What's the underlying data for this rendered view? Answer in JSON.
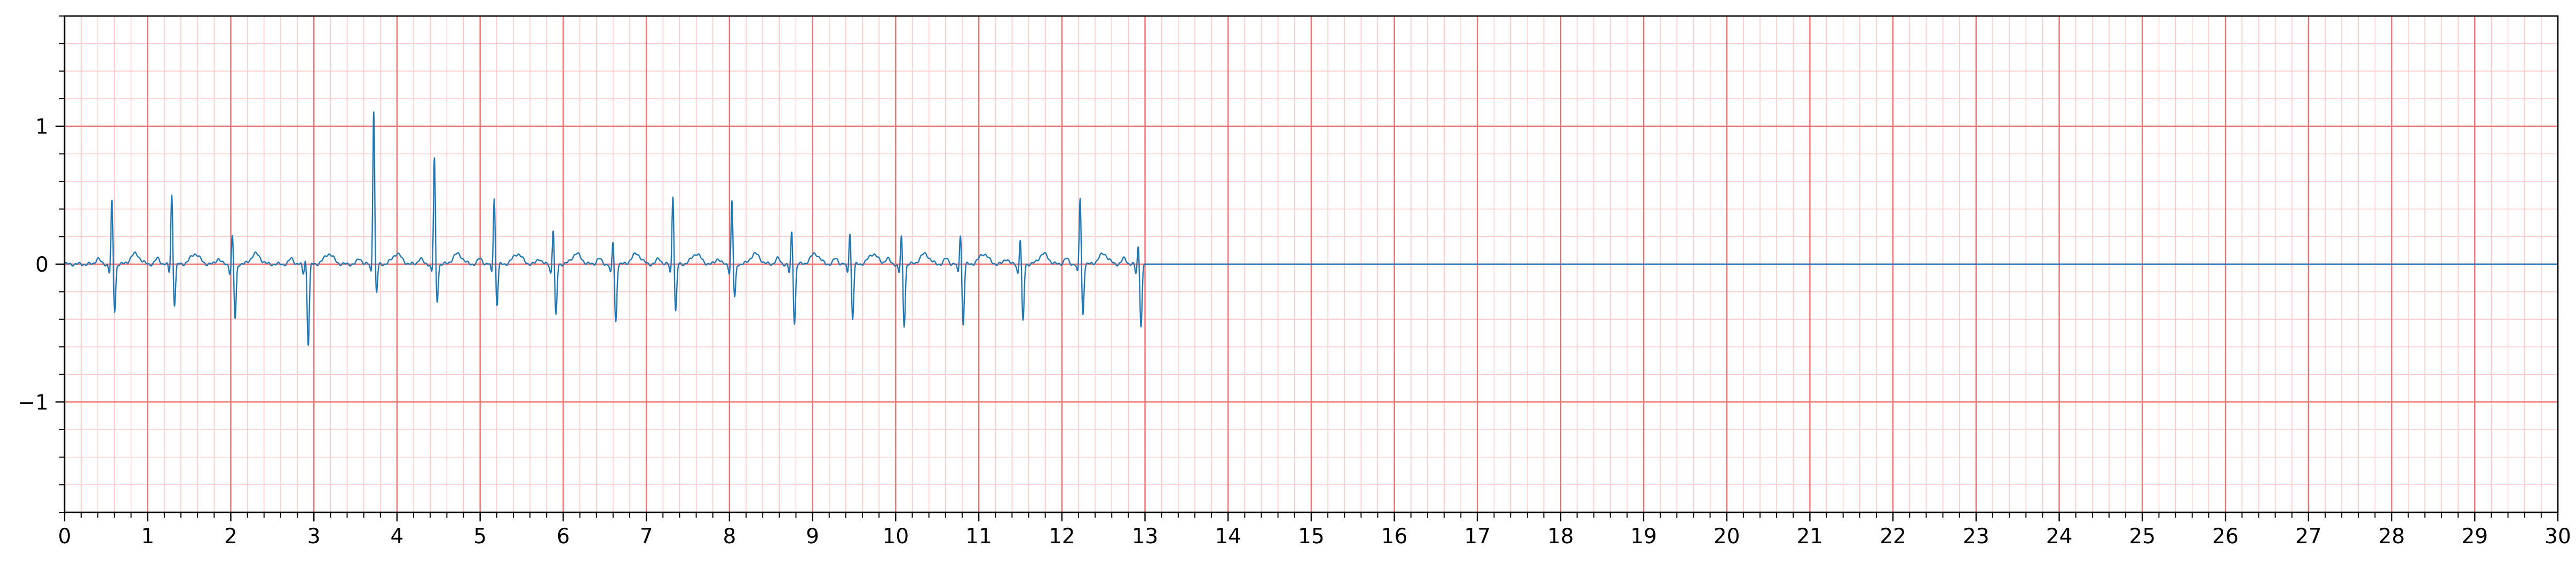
{
  "chart_data": {
    "type": "line",
    "title": "",
    "xlabel": "",
    "ylabel": "",
    "xlim": [
      0,
      30
    ],
    "ylim": [
      -1.8,
      1.8
    ],
    "x_major_ticks": [
      0,
      1,
      2,
      3,
      4,
      5,
      6,
      7,
      8,
      9,
      10,
      11,
      12,
      13,
      14,
      15,
      16,
      17,
      18,
      19,
      20,
      21,
      22,
      23,
      24,
      25,
      26,
      27,
      28,
      29,
      30
    ],
    "x_tick_labels": [
      "0",
      "1",
      "2",
      "3",
      "4",
      "5",
      "6",
      "7",
      "8",
      "9",
      "10",
      "11",
      "12",
      "13",
      "14",
      "15",
      "16",
      "17",
      "18",
      "19",
      "20",
      "21",
      "22",
      "23",
      "24",
      "25",
      "26",
      "27",
      "28",
      "29",
      "30"
    ],
    "y_major_ticks": [
      -1,
      0,
      1
    ],
    "y_tick_labels": [
      "−1",
      "0",
      "1"
    ],
    "grid": {
      "major": true,
      "minor": true,
      "major_x_step": 1,
      "major_y_step": 1,
      "minor_x_step": 0.2,
      "minor_y_step": 0.2,
      "major_color": "#f07070",
      "minor_color": "#ffc8c8"
    },
    "series_color": "#1f77b4",
    "baseline": {
      "y": 0,
      "from_x": 13,
      "to_x": 30
    },
    "beats": [
      {
        "t": 0.57,
        "r": 0.47,
        "s": -0.35
      },
      {
        "t": 1.29,
        "r": 0.52,
        "s": -0.3
      },
      {
        "t": 2.02,
        "r": 0.22,
        "s": -0.4
      },
      {
        "t": 2.9,
        "r": 0.05,
        "s": -0.58
      },
      {
        "t": 3.72,
        "r": 1.13,
        "s": -0.22
      },
      {
        "t": 4.45,
        "r": 0.78,
        "s": -0.28
      },
      {
        "t": 5.17,
        "r": 0.5,
        "s": -0.3
      },
      {
        "t": 5.88,
        "r": 0.27,
        "s": -0.38
      },
      {
        "t": 6.6,
        "r": 0.18,
        "s": -0.42
      },
      {
        "t": 7.32,
        "r": 0.52,
        "s": -0.35
      },
      {
        "t": 8.03,
        "r": 0.47,
        "s": -0.25
      },
      {
        "t": 8.75,
        "r": 0.25,
        "s": -0.43
      },
      {
        "t": 9.45,
        "r": 0.25,
        "s": -0.4
      },
      {
        "t": 10.07,
        "r": 0.22,
        "s": -0.45
      },
      {
        "t": 10.78,
        "r": 0.24,
        "s": -0.44
      },
      {
        "t": 11.5,
        "r": 0.2,
        "s": -0.42
      },
      {
        "t": 12.22,
        "r": 0.5,
        "s": -0.37
      },
      {
        "t": 12.92,
        "r": 0.15,
        "s": -0.45
      }
    ]
  }
}
